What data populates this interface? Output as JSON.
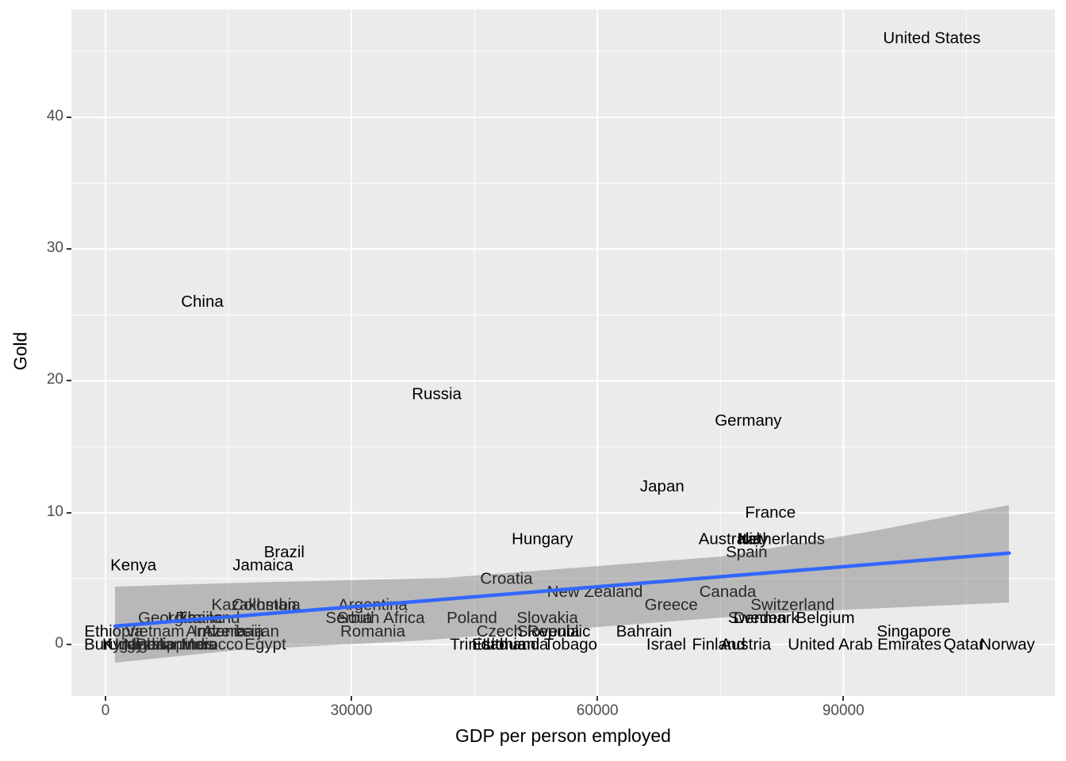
{
  "figure": {
    "background": "#FFFFFF",
    "panel_background": "#EBEBEB",
    "grid_color": "#FFFFFF",
    "band_color": "#666666",
    "band_opacity": 0.38,
    "trend_color": "#3366FF",
    "point_label_color": "#000000",
    "tick_label_color": "#4D4D4D"
  },
  "chart_data": {
    "type": "scatter",
    "title": "",
    "xlabel": "GDP per person employed",
    "ylabel": "Gold",
    "xlim": [
      -4161,
      115806
    ],
    "ylim": [
      -3.91,
      48.18
    ],
    "grid": true,
    "legend_position": "none",
    "x_ticks": [
      {
        "value": 0,
        "label": "0"
      },
      {
        "value": 30000,
        "label": "30000"
      },
      {
        "value": 60000,
        "label": "60000"
      },
      {
        "value": 90000,
        "label": "90000"
      }
    ],
    "y_ticks": [
      {
        "value": 0,
        "label": "0"
      },
      {
        "value": 10,
        "label": "10"
      },
      {
        "value": 20,
        "label": "20"
      },
      {
        "value": 30,
        "label": "30"
      },
      {
        "value": 40,
        "label": "40"
      }
    ],
    "x_minor": [
      15000,
      45000,
      75000,
      105000
    ],
    "y_minor": [
      5,
      15,
      25,
      35,
      45
    ],
    "points": [
      {
        "name": "United States",
        "gdp": 100800,
        "gold": 46
      },
      {
        "name": "China",
        "gdp": 11800,
        "gold": 26
      },
      {
        "name": "Russia",
        "gdp": 40400,
        "gold": 19
      },
      {
        "name": "Germany",
        "gdp": 78400,
        "gold": 17
      },
      {
        "name": "Japan",
        "gdp": 67900,
        "gold": 12
      },
      {
        "name": "France",
        "gdp": 81100,
        "gold": 10
      },
      {
        "name": "Hungary",
        "gdp": 53300,
        "gold": 8
      },
      {
        "name": "Australia",
        "gdp": 76200,
        "gold": 8
      },
      {
        "name": "Italy",
        "gdp": 79000,
        "gold": 8
      },
      {
        "name": "Netherlands",
        "gdp": 82400,
        "gold": 8
      },
      {
        "name": "Spain",
        "gdp": 78200,
        "gold": 7
      },
      {
        "name": "Brazil",
        "gdp": 21800,
        "gold": 7
      },
      {
        "name": "Jamaica",
        "gdp": 19200,
        "gold": 6
      },
      {
        "name": "Kenya",
        "gdp": 3400,
        "gold": 6
      },
      {
        "name": "Croatia",
        "gdp": 48900,
        "gold": 5
      },
      {
        "name": "New Zealand",
        "gdp": 59700,
        "gold": 4
      },
      {
        "name": "Canada",
        "gdp": 75900,
        "gold": 4
      },
      {
        "name": "Greece",
        "gdp": 69000,
        "gold": 3
      },
      {
        "name": "Switzerland",
        "gdp": 83800,
        "gold": 3
      },
      {
        "name": "Argentina",
        "gdp": 32600,
        "gold": 3
      },
      {
        "name": "Kazakhstan",
        "gdp": 18100,
        "gold": 3
      },
      {
        "name": "Colombia",
        "gdp": 19600,
        "gold": 3
      },
      {
        "name": "Sweden",
        "gdp": 79500,
        "gold": 2
      },
      {
        "name": "Denmark",
        "gdp": 80600,
        "gold": 2
      },
      {
        "name": "Belgium",
        "gdp": 87800,
        "gold": 2
      },
      {
        "name": "Slovakia",
        "gdp": 53900,
        "gold": 2
      },
      {
        "name": "Poland",
        "gdp": 44700,
        "gold": 2
      },
      {
        "name": "South Africa",
        "gdp": 33600,
        "gold": 2
      },
      {
        "name": "Serbia",
        "gdp": 29700,
        "gold": 2
      },
      {
        "name": "Georgia",
        "gdp": 7500,
        "gold": 2
      },
      {
        "name": "Thailand",
        "gdp": 12600,
        "gold": 2
      },
      {
        "name": "Ukraine",
        "gdp": 11000,
        "gold": 2
      },
      {
        "name": "Romania",
        "gdp": 32600,
        "gold": 1
      },
      {
        "name": "Czech Republic",
        "gdp": 52200,
        "gold": 1
      },
      {
        "name": "Slovenia",
        "gdp": 54000,
        "gold": 1
      },
      {
        "name": "Bahrain",
        "gdp": 65700,
        "gold": 1
      },
      {
        "name": "Singapore",
        "gdp": 98600,
        "gold": 1
      },
      {
        "name": "Ethiopia",
        "gdp": 1000,
        "gold": 1
      },
      {
        "name": "Vietnam",
        "gdp": 6000,
        "gold": 1
      },
      {
        "name": "Armenia",
        "gdp": 13500,
        "gold": 1
      },
      {
        "name": "Azerbaijan",
        "gdp": 16500,
        "gold": 1
      },
      {
        "name": "Indonesia",
        "gdp": 15000,
        "gold": 1
      },
      {
        "name": "Burundi",
        "gdp": 800,
        "gold": 0
      },
      {
        "name": "Nigeria",
        "gdp": 5300,
        "gold": 0
      },
      {
        "name": "Kyrgyzstan",
        "gdp": 4500,
        "gold": 0
      },
      {
        "name": "Uganda",
        "gdp": 3700,
        "gold": 0
      },
      {
        "name": "Egypt",
        "gdp": 19500,
        "gold": 0
      },
      {
        "name": "Morocco",
        "gdp": 13000,
        "gold": 0
      },
      {
        "name": "India",
        "gdp": 11500,
        "gold": 0
      },
      {
        "name": "Philippines",
        "gdp": 8500,
        "gold": 0
      },
      {
        "name": "Estonia",
        "gdp": 48000,
        "gold": 0
      },
      {
        "name": "Lithuania",
        "gdp": 50000,
        "gold": 0
      },
      {
        "name": "Trinidad and Tobago",
        "gdp": 51000,
        "gold": 0
      },
      {
        "name": "Israel",
        "gdp": 68400,
        "gold": 0
      },
      {
        "name": "Finland",
        "gdp": 74800,
        "gold": 0
      },
      {
        "name": "Austria",
        "gdp": 78100,
        "gold": 0
      },
      {
        "name": "United Arab Emirates",
        "gdp": 92600,
        "gold": 0
      },
      {
        "name": "Qatar",
        "gdp": 104700,
        "gold": 0
      },
      {
        "name": "Norway",
        "gdp": 110000,
        "gold": 0
      }
    ],
    "trend_line": {
      "x": [
        1160,
        110230
      ],
      "y": [
        1.39,
        6.93
      ]
    },
    "confidence_band": {
      "upper": [
        [
          1160,
          4.39
        ],
        [
          17123,
          4.69
        ],
        [
          41310,
          5.05
        ],
        [
          75172,
          6.68
        ],
        [
          93554,
          8.6
        ],
        [
          110195,
          10.58
        ]
      ],
      "lower": [
        [
          1160,
          -1.38
        ],
        [
          16156,
          -0.42
        ],
        [
          38408,
          0.3
        ],
        [
          54855,
          1.08
        ],
        [
          83879,
          2.46
        ],
        [
          110195,
          3.18
        ]
      ]
    }
  }
}
